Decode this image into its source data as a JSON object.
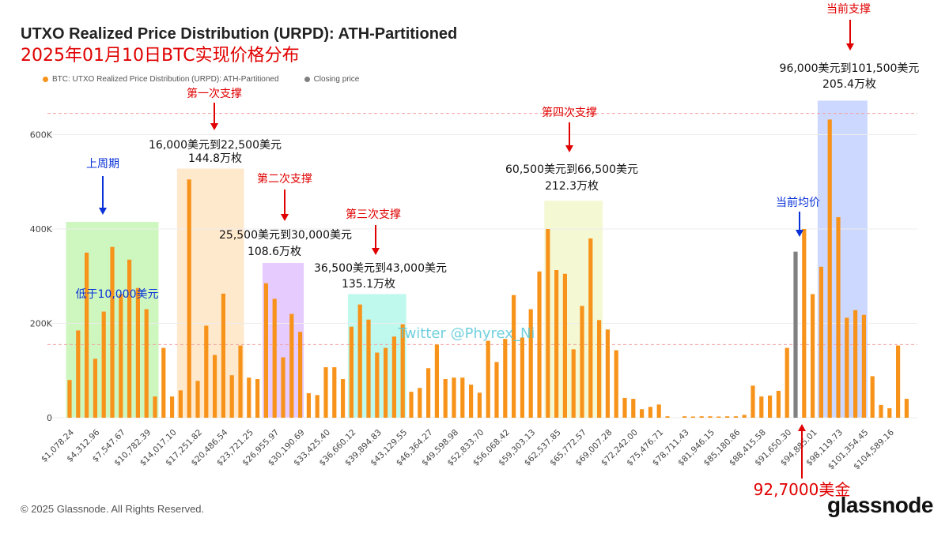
{
  "header": {
    "title": "UTXO Realized Price Distribution (URPD): ATH-Partitioned",
    "subtitle": "2025年01月10日BTC实现价格分布"
  },
  "legend": {
    "series1": "BTC: UTXO Realized Price Distribution (URPD): ATH-Partitioned",
    "series2": "Closing price"
  },
  "colors": {
    "bar": "#f7931a",
    "closing": "#808080",
    "red": "#e00000",
    "blue": "#0a32d8"
  },
  "footer": {
    "copyright": "© 2025 Glassnode. All Rights Reserved.",
    "logo": "glassnode"
  },
  "watermark": "Twitter @Phyrex_Ni",
  "chart_data": {
    "type": "bar",
    "title": "UTXO Realized Price Distribution (URPD): ATH-Partitioned",
    "ylim": [
      0,
      680000
    ],
    "y_ticks": [
      0,
      200000,
      400000,
      600000
    ],
    "y_tick_labels": [
      "0",
      "200K",
      "400K",
      "600K"
    ],
    "x_tick_labels": [
      "$1,078.24",
      "$4,312.96",
      "$7,547.67",
      "$10,782.39",
      "$14,017.10",
      "$17,251.82",
      "$20,486.54",
      "$23,721.25",
      "$26,955.97",
      "$30,190.69",
      "$33,425.40",
      "$36,660.12",
      "$39,894.83",
      "$43,129.55",
      "$46,364.27",
      "$49,598.98",
      "$52,833.70",
      "$56,068.42",
      "$59,303.13",
      "$62,537.85",
      "$65,772.57",
      "$69,007.28",
      "$72,242.00",
      "$75,476.71",
      "$78,711.43",
      "$81,946.15",
      "$85,180.86",
      "$88,415.58",
      "$91,650.30",
      "$94,885.01",
      "$98,119.73",
      "$101,354.45",
      "$104,589.16"
    ],
    "values": [
      80000,
      185000,
      350000,
      125000,
      225000,
      362000,
      262000,
      335000,
      275000,
      230000,
      45000,
      148000,
      45000,
      58000,
      505000,
      78000,
      195000,
      133000,
      263000,
      90000,
      153000,
      85000,
      82000,
      285000,
      252000,
      128000,
      220000,
      182000,
      52000,
      48000,
      107000,
      107000,
      82000,
      193000,
      240000,
      208000,
      138000,
      148000,
      172000,
      198000,
      55000,
      63000,
      105000,
      155000,
      82000,
      85000,
      85000,
      70000,
      53000,
      163000,
      118000,
      167000,
      260000,
      170000,
      230000,
      310000,
      400000,
      313000,
      305000,
      145000,
      237000,
      380000,
      207000,
      187000,
      143000,
      42000,
      40000,
      18000,
      23000,
      28000,
      3000,
      0,
      3000,
      2000,
      3000,
      3000,
      1000,
      3000,
      3000,
      6000,
      68000,
      45000,
      47000,
      57000,
      148000,
      352000,
      400000,
      262000,
      320000,
      632000,
      425000,
      212000,
      228000,
      218000,
      88000,
      27000,
      20000,
      153000,
      40000
    ],
    "closing_price_bar_index": 85,
    "reference_lines": [
      645000,
      155000
    ],
    "zones": [
      {
        "name": "上周期",
        "color": "#90ee70",
        "start_bar": 0,
        "end_bar": 10,
        "top": 415000
      },
      {
        "name": "第一次支撑",
        "color": "#ffcf90",
        "start_bar": 13,
        "end_bar": 20,
        "top": 528000
      },
      {
        "name": "第二次支撑",
        "color": "#c88cff",
        "start_bar": 23,
        "end_bar": 27,
        "top": 328000
      },
      {
        "name": "第三次支撑",
        "color": "#70f0d8",
        "start_bar": 33,
        "end_bar": 39,
        "top": 262000
      },
      {
        "name": "第四次支撑",
        "color": "#e6f2a0",
        "start_bar": 56,
        "end_bar": 62,
        "top": 460000
      },
      {
        "name": "当前支撑",
        "color": "#8fa8ff",
        "start_bar": 88,
        "end_bar": 93,
        "top": 672000
      }
    ],
    "annotations": {
      "cycle_label": "上周期",
      "below_10k": "低于10,000美元",
      "support1": "第一次支撑",
      "support1_range": "16,000美元到22,500美元",
      "support1_amount": "144.8万枚",
      "support2": "第二次支撑",
      "support2_range": "25,500美元到30,000美元",
      "support2_amount": "108.6万枚",
      "support3": "第三次支撑",
      "support3_range": "36,500美元到43,000美元",
      "support3_amount": "135.1万枚",
      "support4": "第四次支撑",
      "support4_range": "60,500美元到66,500美元",
      "support4_amount": "212.3万枚",
      "current_avg": "当前均价",
      "current_support": "当前支撑",
      "current_range": "96,000美元到101,500美元",
      "current_amount": "205.4万枚",
      "price_label": "92,7000美金"
    }
  }
}
